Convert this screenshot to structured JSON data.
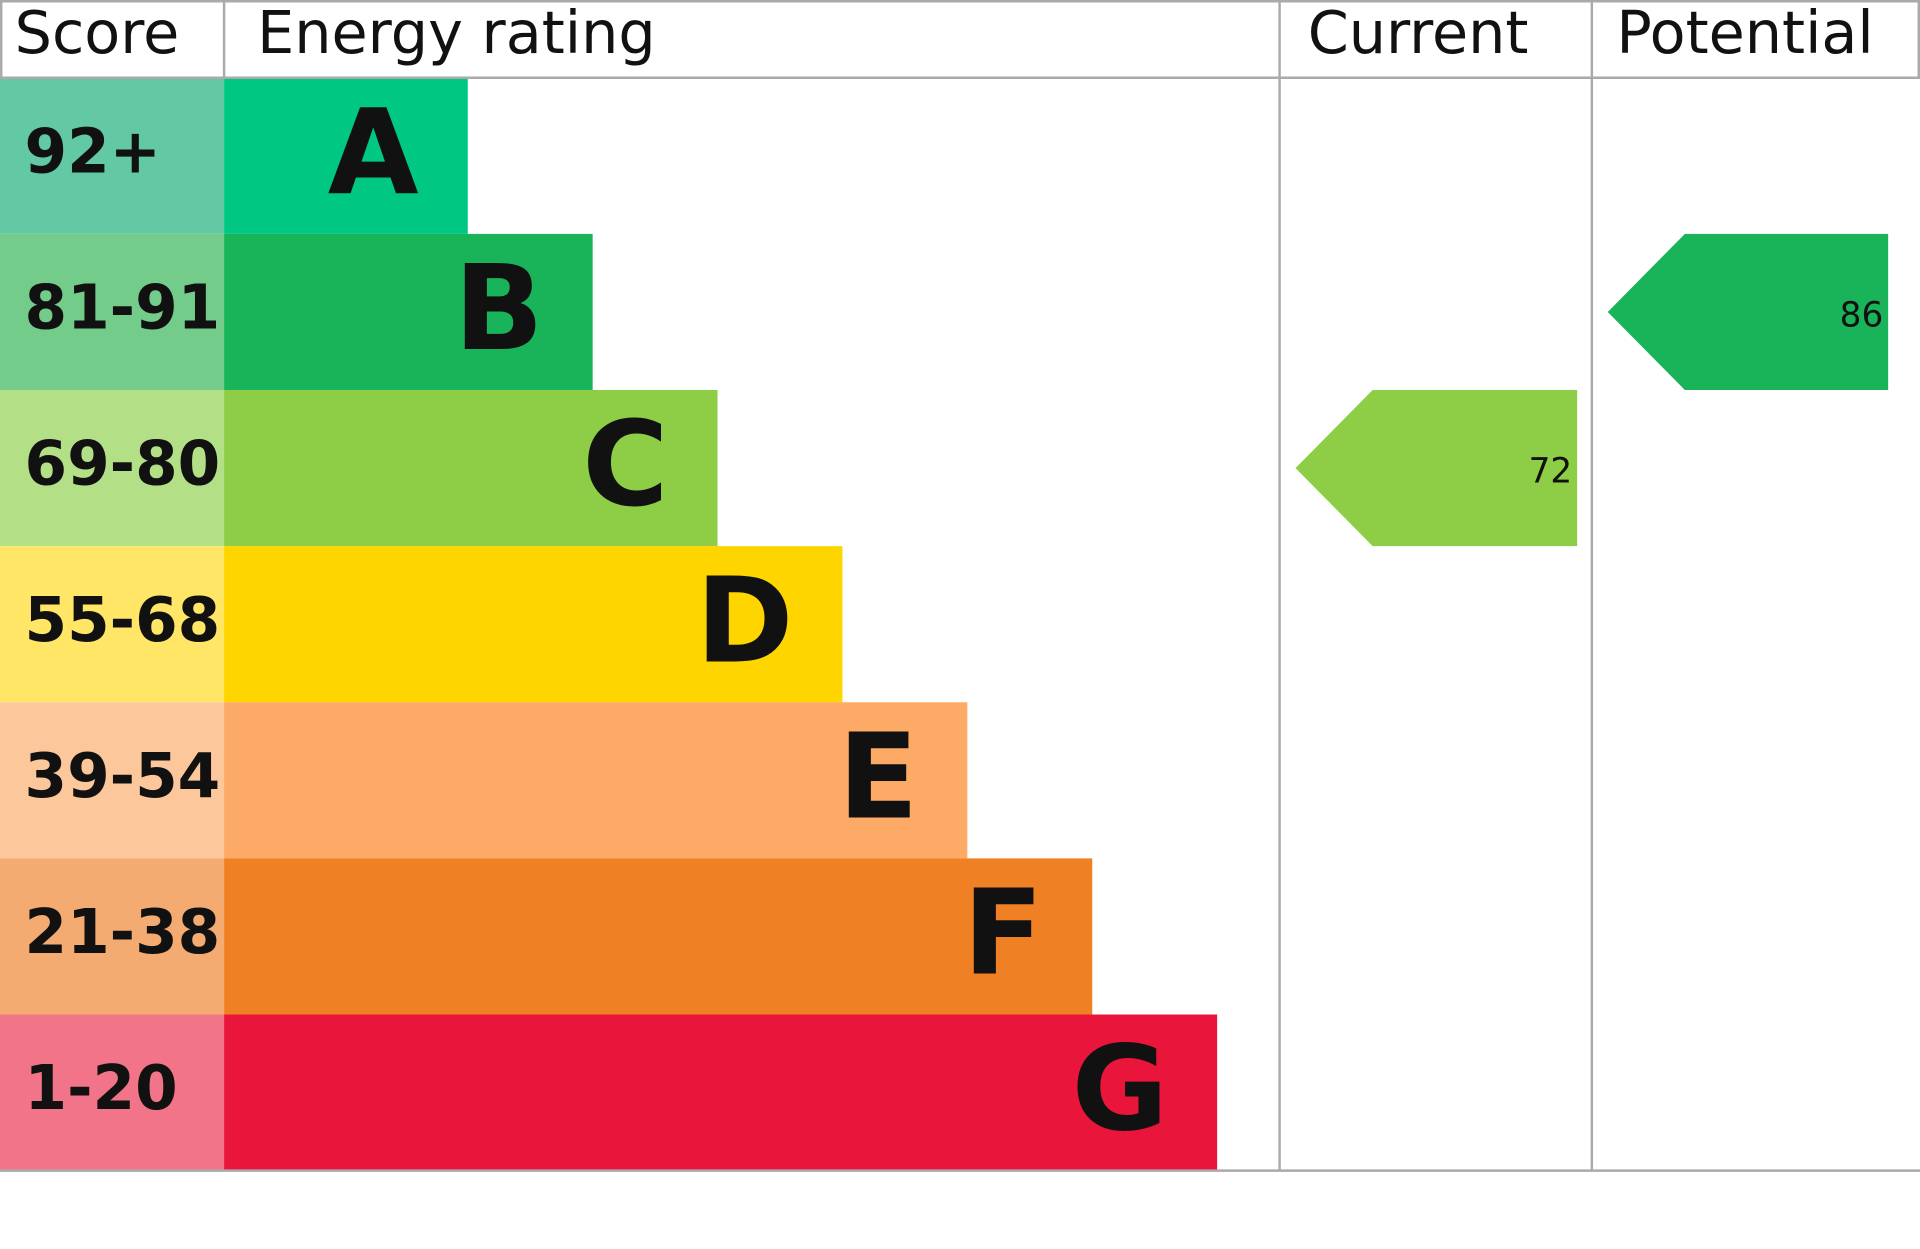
{
  "header": {
    "score": "Score",
    "energy_rating": "Energy rating",
    "current": "Current",
    "potential": "Potential"
  },
  "bands": [
    {
      "score": "92+",
      "letter": "A",
      "color": "#00c781",
      "score_color": "#63c8a4"
    },
    {
      "score": "81-91",
      "letter": "B",
      "color": "#19b459",
      "score_color": "#74cc8b"
    },
    {
      "score": "69-80",
      "letter": "C",
      "color": "#8dce46",
      "score_color": "#b3e087"
    },
    {
      "score": "55-68",
      "letter": "D",
      "color": "#ffd500",
      "score_color": "#ffe666"
    },
    {
      "score": "39-54",
      "letter": "E",
      "color": "#fcaa65",
      "score_color": "#fdc79c"
    },
    {
      "score": "21-38",
      "letter": "F",
      "color": "#ef8023",
      "score_color": "#f4ab72"
    },
    {
      "score": "1-20",
      "letter": "G",
      "color": "#e9153b",
      "score_color": "#f27489"
    }
  ],
  "current": {
    "value": 72
  },
  "potential": {
    "value": 86
  }
}
